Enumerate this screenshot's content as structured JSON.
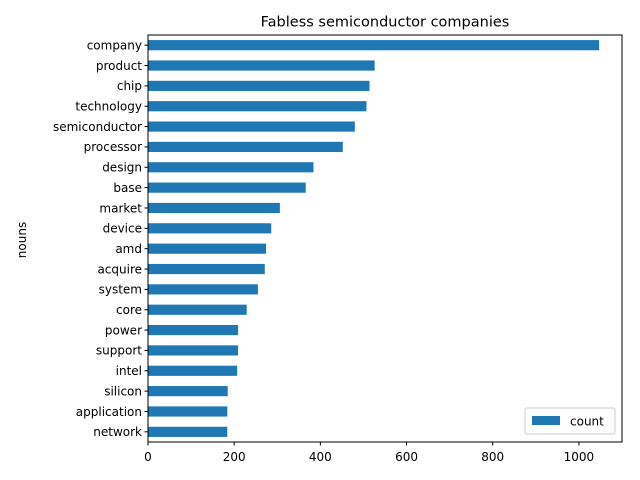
{
  "chart_data": {
    "type": "bar",
    "orientation": "horizontal",
    "title": "Fabless semiconductor companies",
    "xlabel": "",
    "ylabel": "nouns",
    "xlim": [
      0,
      1100
    ],
    "xticks": [
      0,
      200,
      400,
      600,
      800,
      1000
    ],
    "grid": false,
    "legend_position": "bottom-right",
    "bar_color": "#1f77b4",
    "categories": [
      "company",
      "product",
      "chip",
      "technology",
      "semiconductor",
      "processor",
      "design",
      "base",
      "market",
      "device",
      "amd",
      "acquire",
      "system",
      "core",
      "power",
      "support",
      "intel",
      "silicon",
      "application",
      "network"
    ],
    "series": [
      {
        "name": "count",
        "values": [
          1047,
          526,
          514,
          507,
          480,
          452,
          384,
          366,
          306,
          286,
          274,
          271,
          255,
          229,
          209,
          209,
          207,
          185,
          184,
          184
        ]
      }
    ]
  }
}
